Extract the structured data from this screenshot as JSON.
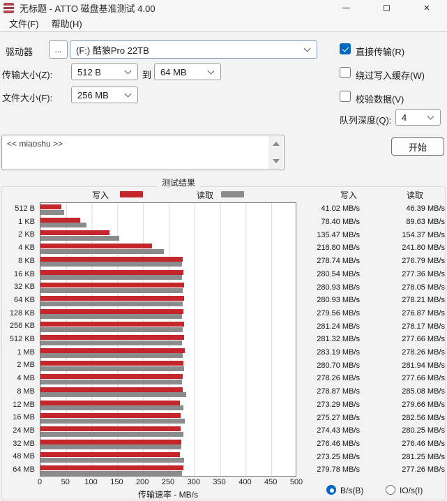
{
  "window": {
    "title": "无标题 - ATTO 磁盘基准测试 4.00"
  },
  "menu": {
    "file": "文件(F)",
    "help": "帮助(H)"
  },
  "controls": {
    "drive_label": "驱动器",
    "browse_button": "...",
    "drive_value": "(F:) 酷狼Pro 22TB",
    "transfer_size_label": "传输大小(Z):",
    "transfer_from": "512 B",
    "to_label": "到",
    "transfer_to": "64 MB",
    "file_size_label": "文件大小(F):",
    "file_size_value": "256 MB",
    "direct_io_label": "直接传输(R)",
    "bypass_cache_label": "绕过写入缓存(W)",
    "verify_label": "校验数据(V)",
    "queue_depth_label": "队列深度(Q):",
    "queue_depth_value": "4",
    "description_text": "<< miaoshu >>",
    "start_button": "开始"
  },
  "results": {
    "title": "测试结果",
    "legend_write": "写入",
    "legend_read": "读取",
    "col_write": "写入",
    "col_read": "读取",
    "radio_bs": "B/s(B)",
    "radio_ios": "IO/s(I)",
    "radio_selected": "B/s(B)"
  },
  "chart_data": {
    "type": "bar",
    "orientation": "horizontal",
    "title": "测试结果",
    "xlabel": "传输速率 - MB/s",
    "ylabel": "",
    "xlim": [
      0,
      500
    ],
    "x_ticks": [
      0,
      50,
      100,
      150,
      200,
      250,
      300,
      350,
      400,
      450,
      500
    ],
    "grid": true,
    "legend_position": "top",
    "value_unit": "MB/s",
    "categories": [
      "512 B",
      "1 KB",
      "2 KB",
      "4 KB",
      "8 KB",
      "16 KB",
      "32 KB",
      "64 KB",
      "128 KB",
      "256 KB",
      "512 KB",
      "1 MB",
      "2 MB",
      "4 MB",
      "8 MB",
      "12 MB",
      "16 MB",
      "24 MB",
      "32 MB",
      "48 MB",
      "64 MB"
    ],
    "series": [
      {
        "name": "写入",
        "color": "#c5262c",
        "values": [
          41.02,
          78.4,
          135.47,
          218.8,
          278.74,
          280.54,
          280.93,
          280.93,
          279.56,
          281.24,
          281.32,
          283.19,
          280.7,
          278.26,
          278.87,
          273.29,
          275.27,
          274.43,
          276.46,
          273.25,
          279.78
        ]
      },
      {
        "name": "读取",
        "color": "#8b8b8b",
        "values": [
          46.39,
          89.63,
          154.37,
          241.8,
          276.79,
          277.36,
          278.05,
          278.21,
          276.87,
          278.17,
          277.66,
          278.26,
          281.94,
          277.66,
          285.08,
          279.66,
          282.56,
          280.25,
          276.46,
          281.25,
          277.26
        ]
      }
    ]
  }
}
